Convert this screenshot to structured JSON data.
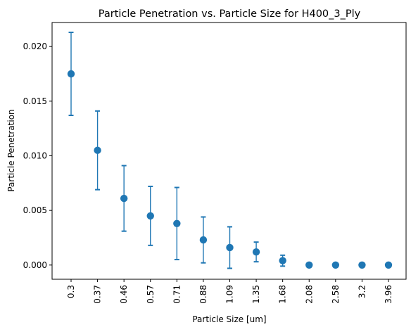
{
  "chart_data": {
    "type": "scatter",
    "title": "Particle Penetration vs. Particle Size for H400_3_Ply",
    "xlabel": "Particle Size [um]",
    "ylabel": "Particle Penetration",
    "categories": [
      "0.3",
      "0.37",
      "0.46",
      "0.57",
      "0.71",
      "0.88",
      "1.09",
      "1.35",
      "1.68",
      "2.08",
      "2.58",
      "3.2",
      "3.96"
    ],
    "series": [
      {
        "values": [
          0.0175,
          0.0105,
          0.0061,
          0.0045,
          0.0038,
          0.0023,
          0.0016,
          0.0012,
          0.0004,
          0.0,
          0.0,
          0.0,
          0.0
        ],
        "error": [
          0.0038,
          0.0036,
          0.003,
          0.0027,
          0.0033,
          0.0021,
          0.0019,
          0.0009,
          0.0005,
          0.0,
          0.0,
          0.0,
          0.0
        ]
      }
    ],
    "ylim": [
      -0.0013,
      0.0222
    ],
    "yticks": [
      0.0,
      0.005,
      0.01,
      0.015,
      0.02
    ],
    "ytick_labels": [
      "0.000",
      "0.005",
      "0.010",
      "0.015",
      "0.020"
    ],
    "grid": false,
    "legend": false,
    "colors": {
      "marker": "#1f77b4",
      "axis": "#000000"
    }
  }
}
